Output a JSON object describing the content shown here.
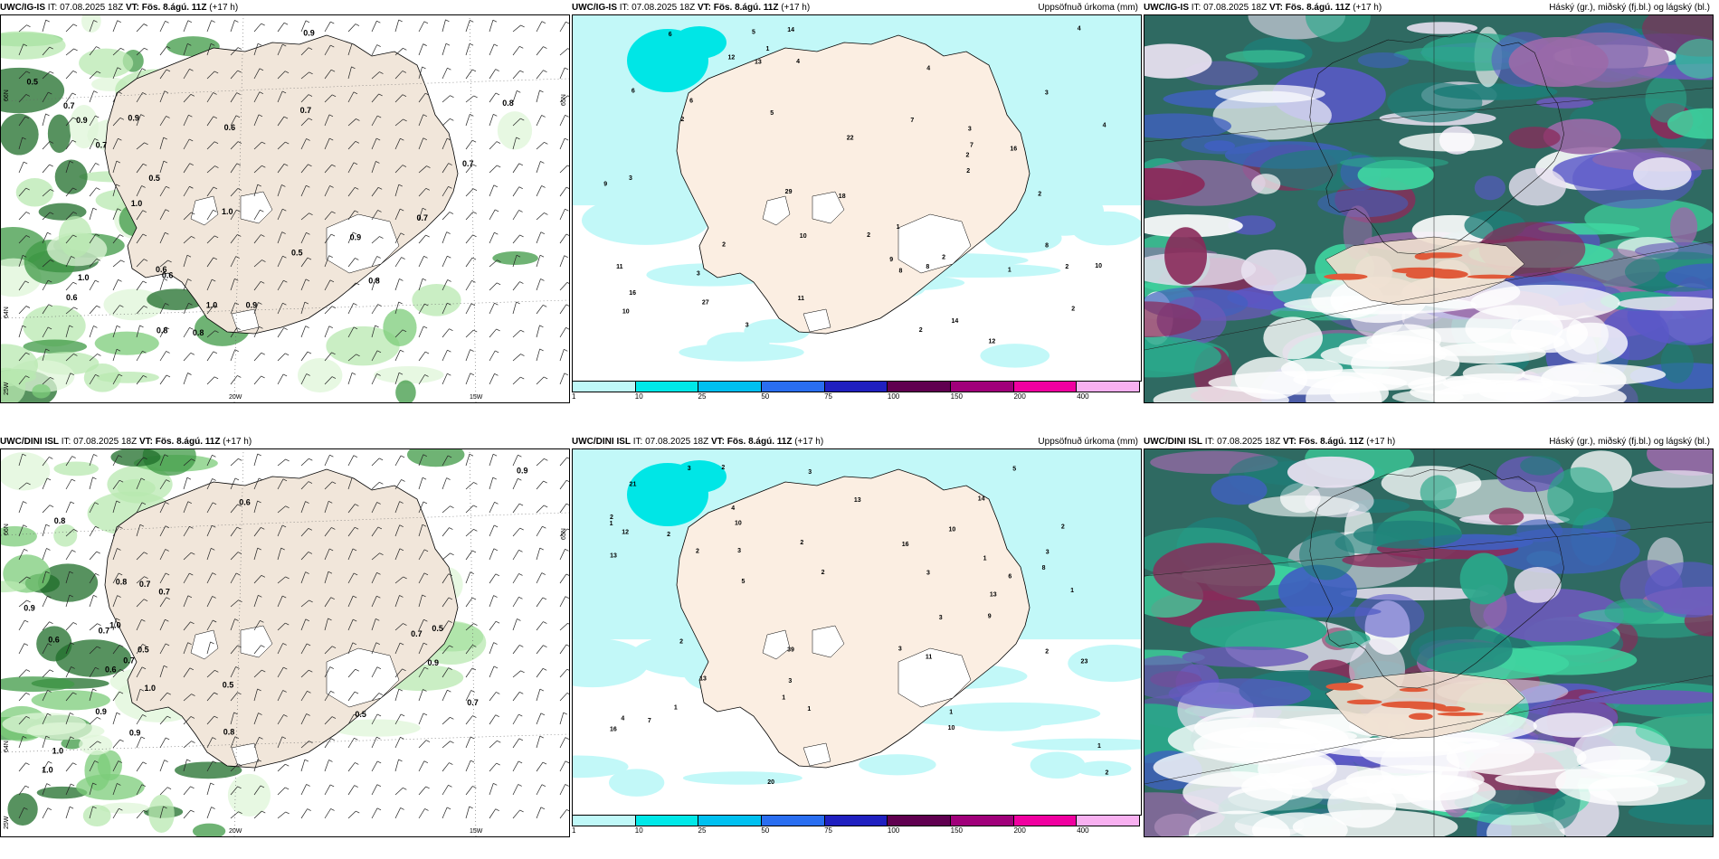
{
  "panels": [
    {
      "id": "p1",
      "model": "UWC/IG-IS",
      "it": "IT: 07.08.2025 18Z",
      "vt": "VT: Fös. 8.ágú. 11Z",
      "lead": "(+17 h)",
      "right": ""
    },
    {
      "id": "p2",
      "model": "UWC/IG-IS",
      "it": "IT: 07.08.2025 18Z",
      "vt": "VT: Fös. 8.ágú. 11Z",
      "lead": "(+17 h)",
      "right": "Uppsöfnuð úrkoma (mm)"
    },
    {
      "id": "p3",
      "model": "UWC/IG-IS",
      "it": "IT: 07.08.2025 18Z",
      "vt": "VT: Fös. 8.ágú. 11Z",
      "lead": "(+17 h)",
      "right": "Háský (gr.), miðský (fj.bl.) og lágský (bl.)"
    },
    {
      "id": "p4",
      "model": "UWC/DINI ISL",
      "it": "IT: 07.08.2025 18Z",
      "vt": "VT: Fös. 8.ágú. 11Z",
      "lead": "(+17 h)",
      "right": ""
    },
    {
      "id": "p5",
      "model": "UWC/DINI ISL",
      "it": "IT: 07.08.2025 18Z",
      "vt": "VT: Fös. 8.ágú. 11Z",
      "lead": "(+17 h)",
      "right": "Uppsöfnuð úrkoma (mm)"
    },
    {
      "id": "p6",
      "model": "UWC/DINI ISL",
      "it": "IT: 07.08.2025 18Z",
      "vt": "VT: Fös. 8.ágú. 11Z",
      "lead": "(+17 h)",
      "right": "Háský (gr.), miðský (fj.bl.) og lágský (bl.)"
    }
  ],
  "axis_labels": {
    "lat66": "66N",
    "lat64": "64N",
    "lat25": "25W",
    "lon20": "20W",
    "lon15": "15W",
    "lat65": "65N"
  },
  "colorbar": {
    "ticks": [
      "1",
      "10",
      "25",
      "50",
      "75",
      "100",
      "150",
      "200",
      "400"
    ],
    "colors": [
      "#bff8f8",
      "#00e8e8",
      "#00c0f0",
      "#2a6ef0",
      "#2020c0",
      "#600050",
      "#a0007a",
      "#f000a0",
      "#f8b0f0"
    ]
  },
  "precip_labels_top": [
    "12",
    "3",
    "2",
    "5",
    "6",
    "10",
    "9",
    "16",
    "4",
    "29",
    "10",
    "22",
    "11",
    "14",
    "14",
    "10",
    "5",
    "13",
    "11",
    "8",
    "3",
    "7",
    "8",
    "27",
    "2",
    "2",
    "6",
    "1",
    "1",
    "3",
    "3",
    "2",
    "2",
    "18",
    "2",
    "2",
    "6",
    "8",
    "4",
    "16",
    "12",
    "9",
    "7",
    "4",
    "1",
    "4",
    "2",
    "2",
    "3",
    "2"
  ],
  "precip_labels_bottom": [
    "3",
    "11",
    "3",
    "8",
    "10",
    "20",
    "23",
    "39",
    "16",
    "13",
    "12",
    "10",
    "16",
    "21",
    "14",
    "13",
    "9",
    "5",
    "1",
    "1",
    "3",
    "2",
    "2",
    "2",
    "13",
    "13",
    "1",
    "4",
    "10",
    "2",
    "2",
    "3",
    "4",
    "1",
    "2",
    "2",
    "1",
    "2",
    "1",
    "7",
    "6",
    "3",
    "1",
    "3",
    "2",
    "3",
    "1",
    "5",
    "2",
    "3"
  ],
  "cloud_labels_top": [
    "0.6",
    "0.8",
    "0.5",
    "0.5",
    "0.7",
    "1.0",
    "0.9",
    "0.6",
    "0.7",
    "1.0",
    "0.6",
    "0.9",
    "1.0",
    "0.8",
    "0.9",
    "0.5",
    "0.8",
    "0.7",
    "0.7",
    "0.9",
    "0.6",
    "0.7",
    "0.8",
    "1.0",
    "0.9"
  ],
  "cloud_labels_bottom": [
    "1.0",
    "0.9",
    "1.0",
    "0.7",
    "0.8",
    "0.9",
    "0.7",
    "1.0",
    "0.6",
    "0.5",
    "0.8",
    "0.9",
    "0.6",
    "0.7",
    "0.5",
    "0.9",
    "0.5",
    "0.7",
    "0.6",
    "0.8",
    "1.0",
    "0.7",
    "0.9",
    "0.7",
    "0.5"
  ]
}
